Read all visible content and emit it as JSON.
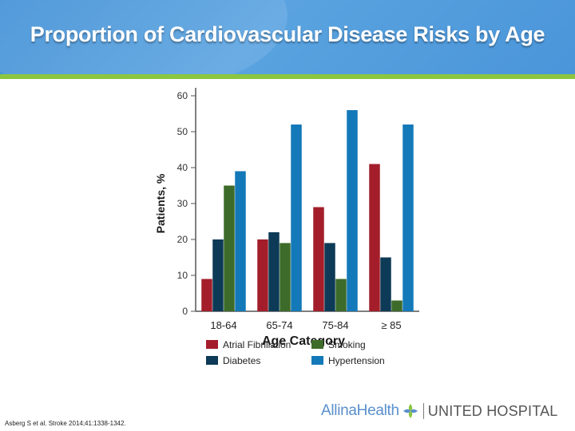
{
  "slide": {
    "title": "Proportion of Cardiovascular Disease Risks by Age",
    "citation": "Asberg S et al. Stroke 2014;41:1338-1342."
  },
  "logo": {
    "brand_part1": "Allina",
    "brand_part2": "Health",
    "hospital": "UNITED HOSPITAL",
    "icon": "leaf-cross-icon",
    "colors": {
      "brand": "#5a8fcc",
      "hospital": "#555555",
      "divider": "#7a7a7a"
    }
  },
  "theme": {
    "header_bg": "#4a95d9",
    "accent_bar": "#8cc63f"
  },
  "chart_data": {
    "type": "bar",
    "title": "",
    "xlabel": "Age Category",
    "ylabel": "Patients, %",
    "ylim": [
      0,
      60
    ],
    "yticks": [
      0,
      10,
      20,
      30,
      40,
      50,
      60
    ],
    "categories": [
      "18-64",
      "65-74",
      "75-84",
      "≥ 85"
    ],
    "series": [
      {
        "name": "Atrial Fibrillation",
        "color": "#a31e2a",
        "values": [
          9,
          20,
          29,
          41
        ]
      },
      {
        "name": "Diabetes",
        "color": "#0d3a56",
        "values": [
          20,
          22,
          19,
          15
        ]
      },
      {
        "name": "Smoking",
        "color": "#3d6b2a",
        "values": [
          35,
          19,
          9,
          3
        ]
      },
      {
        "name": "Hypertension",
        "color": "#1479b8",
        "values": [
          39,
          52,
          56,
          52
        ]
      }
    ],
    "legend_position": "bottom",
    "legend_order": [
      "Atrial Fibrillation",
      "Smoking",
      "Diabetes",
      "Hypertension"
    ]
  }
}
